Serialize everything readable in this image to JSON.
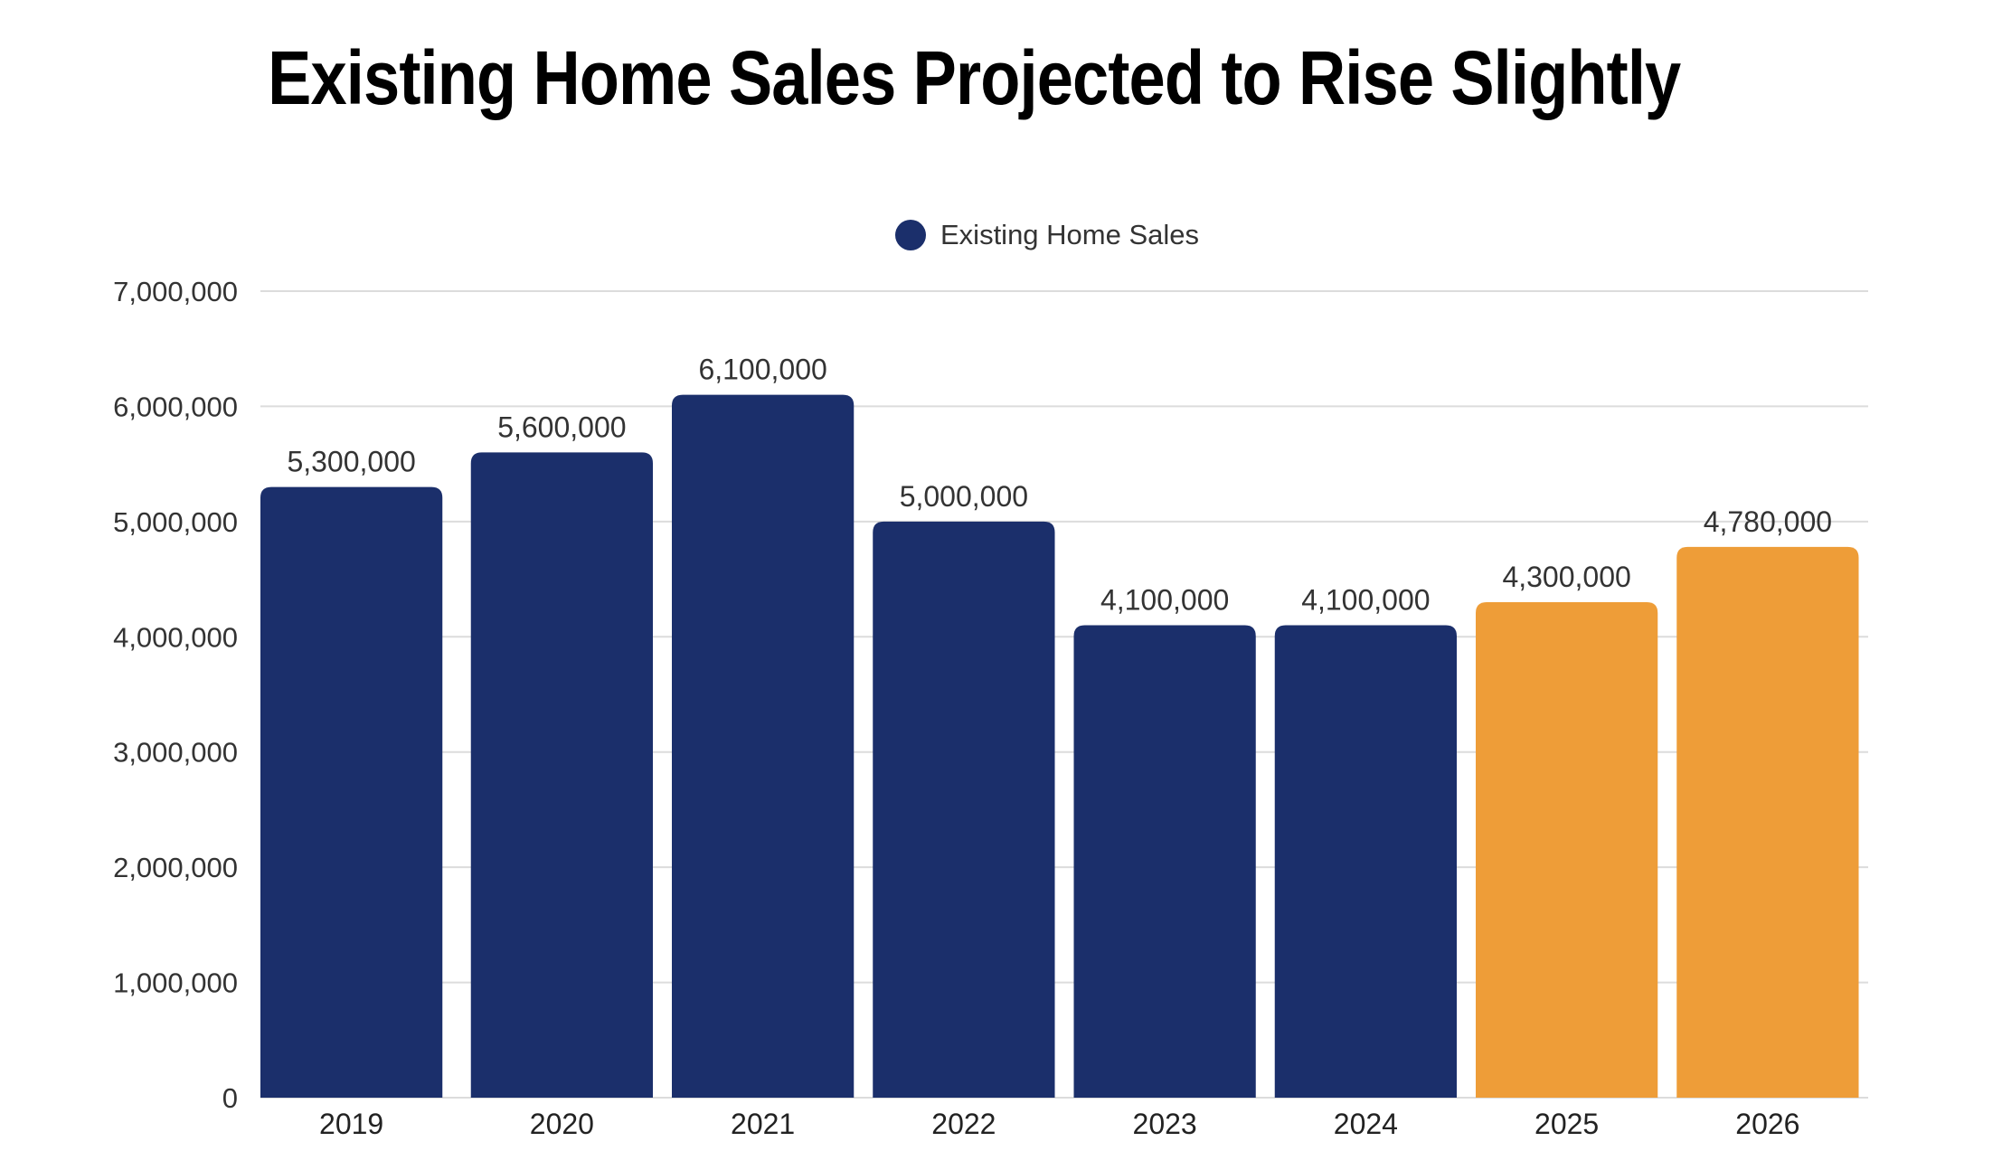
{
  "chart_data": {
    "type": "bar",
    "title": "Existing Home Sales Projected to Rise Slightly",
    "xlabel": "",
    "ylabel": "",
    "legend": {
      "position": "top-center",
      "entries": [
        "Existing Home Sales"
      ]
    },
    "categories": [
      "2019",
      "2020",
      "2021",
      "2022",
      "2023",
      "2024",
      "2025",
      "2026"
    ],
    "series": [
      {
        "name": "Existing Home Sales",
        "values": [
          5300000,
          5600000,
          6100000,
          5000000,
          4100000,
          4100000,
          4300000,
          4780000
        ],
        "data_labels": [
          "5,300,000",
          "5,600,000",
          "6,100,000",
          "5,000,000",
          "4,100,000",
          "4,100,000",
          "4,300,000",
          "4,780,000"
        ],
        "projected": [
          false,
          false,
          false,
          false,
          false,
          false,
          true,
          true
        ]
      }
    ],
    "ylim": [
      0,
      7000000
    ],
    "yticks": [
      0,
      1000000,
      2000000,
      3000000,
      4000000,
      5000000,
      6000000,
      7000000
    ],
    "ytick_labels": [
      "0",
      "1,000,000",
      "2,000,000",
      "3,000,000",
      "4,000,000",
      "5,000,000",
      "6,000,000",
      "7,000,000"
    ],
    "grid": true,
    "colors": {
      "actual": "#1b2f6b",
      "projected": "#ee9d38",
      "grid": "#dcdcdc",
      "legend_dot": "#1b2f6b"
    }
  }
}
